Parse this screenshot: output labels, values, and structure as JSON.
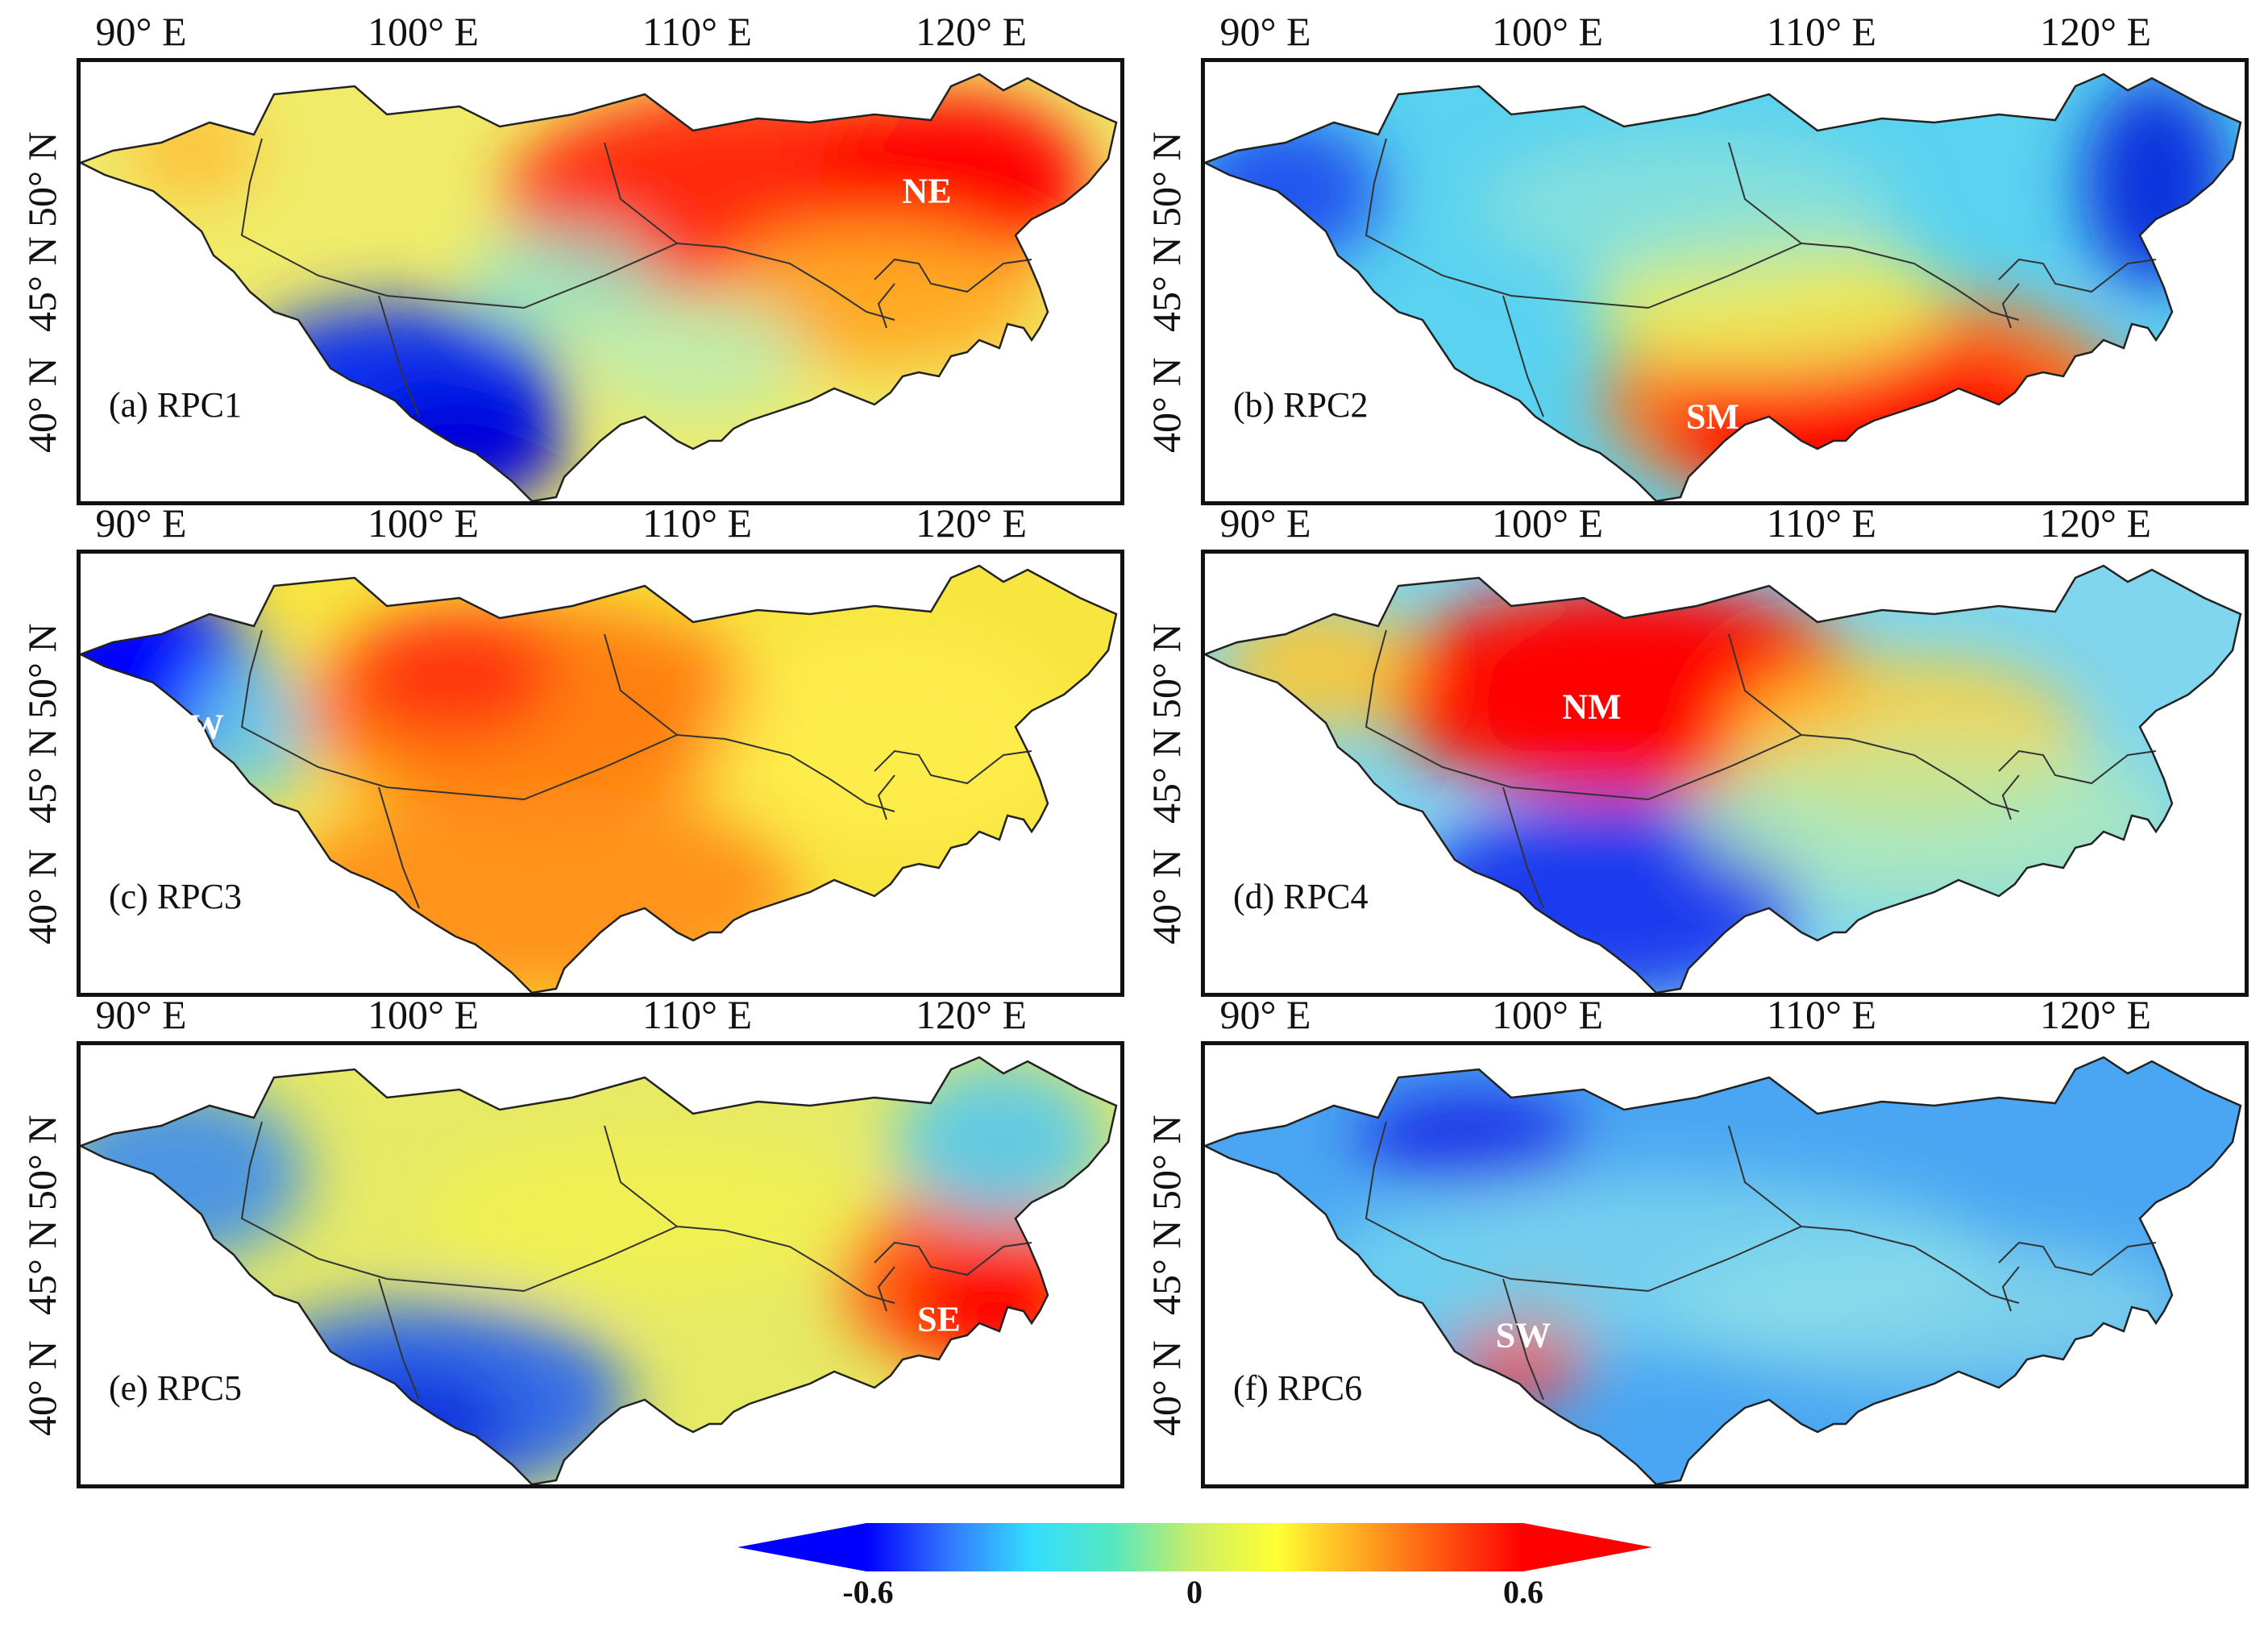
{
  "figure": {
    "longitude_ticks": [
      "90° E",
      "100° E",
      "110° E",
      "120° E"
    ],
    "latitude_ticks": [
      "50° N",
      "45° N",
      "40° N"
    ],
    "panels": [
      {
        "label": "(a) RPC1",
        "region": "NE"
      },
      {
        "label": "(b) RPC2",
        "region": "SM"
      },
      {
        "label": "(c) RPC3",
        "region": "NW"
      },
      {
        "label": "(d) RPC4",
        "region": "NM"
      },
      {
        "label": "(e) RPC5",
        "region": "SE"
      },
      {
        "label": "(f) RPC6",
        "region": "SW"
      }
    ],
    "colorbar": {
      "ticks": [
        "-0.6",
        "0",
        "0.6"
      ],
      "range": [
        -0.6,
        0.6
      ],
      "colors": [
        "#0000ff",
        "#3377ff",
        "#33ddff",
        "#55e8c0",
        "#ccee66",
        "#ffff33",
        "#ffaa22",
        "#ff5511",
        "#ff0000"
      ]
    }
  }
}
